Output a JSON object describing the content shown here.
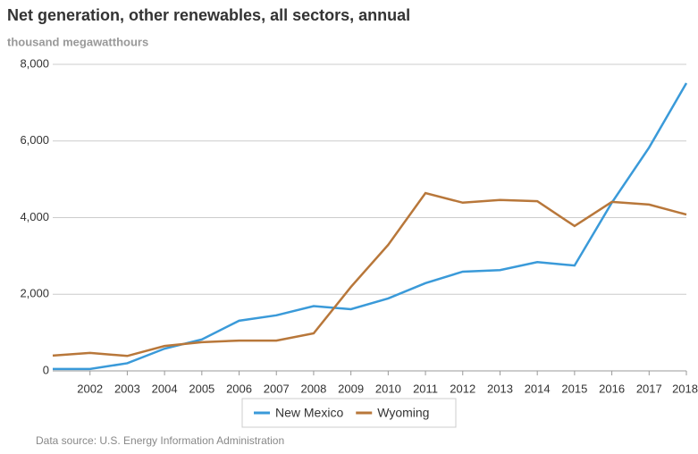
{
  "chart_data": {
    "type": "line",
    "title": "Net generation, other renewables, all sectors, annual",
    "subtitle": "thousand megawatthours",
    "source": "Data source: U.S. Energy Information Administration",
    "x": [
      2001,
      2002,
      2003,
      2004,
      2005,
      2006,
      2007,
      2008,
      2009,
      2010,
      2011,
      2012,
      2013,
      2014,
      2015,
      2016,
      2017,
      2018
    ],
    "xlim": [
      2001,
      2018
    ],
    "xticks": [
      2002,
      2003,
      2004,
      2005,
      2006,
      2007,
      2008,
      2009,
      2010,
      2011,
      2012,
      2013,
      2014,
      2015,
      2016,
      2017,
      2018
    ],
    "ylim": [
      0,
      8000
    ],
    "yticks": [
      0,
      {
        "value": 2000,
        "label": "2,000"
      },
      {
        "value": 4000,
        "label": "4,000"
      },
      {
        "value": 6000,
        "label": "6,000"
      },
      {
        "value": 8000,
        "label": "8,000"
      }
    ],
    "grid": true,
    "legend": "bottom",
    "series": [
      {
        "name": "New Mexico",
        "color": "#3a9ad9",
        "values": [
          50,
          50,
          200,
          580,
          820,
          1310,
          1450,
          1690,
          1610,
          1890,
          2290,
          2590,
          2630,
          2840,
          2750,
          4390,
          5830,
          7510
        ]
      },
      {
        "name": "Wyoming",
        "color": "#b8773a",
        "values": [
          400,
          470,
          390,
          650,
          750,
          790,
          790,
          980,
          2190,
          3290,
          4640,
          4390,
          4460,
          4430,
          3780,
          4410,
          4340,
          4080
        ]
      }
    ]
  }
}
